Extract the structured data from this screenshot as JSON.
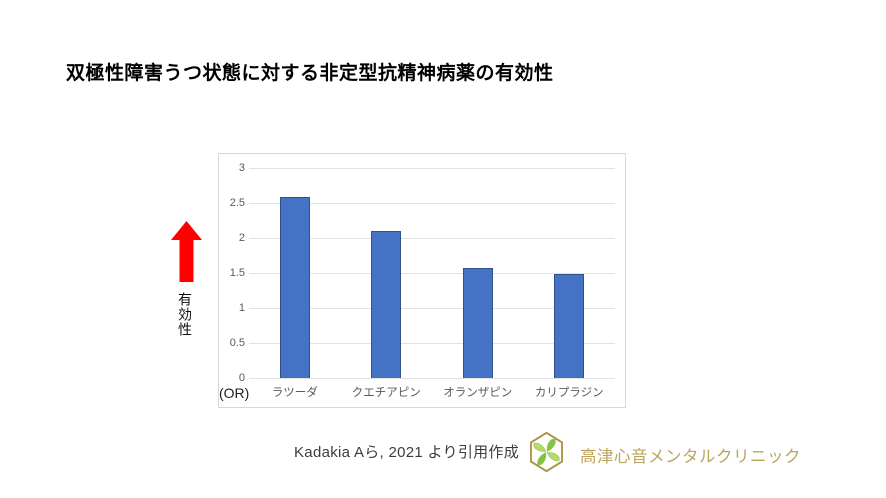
{
  "slide": {
    "title": "双極性障害うつ状態に対する非定型抗精神病薬の有効性",
    "effectiveness_label": "有効性",
    "or_unit_label": "(OR)",
    "citation": "Kadakia Aら, 2021 より引用作成"
  },
  "logo": {
    "clinic_name": "高津心音メンタルクリニック",
    "text_color": "#BCA45C",
    "hex_border_color": "#A9923F",
    "leaf_color_dark": "#86C440",
    "leaf_color_light": "#B5DB6E"
  },
  "colors": {
    "arrow_red": "#FF0000",
    "bar_fill": "#4472C4",
    "bar_border": "#2F528F",
    "gridline": "#E2E2E2",
    "chart_border": "#D8D8D8",
    "axis_text": "#595959"
  },
  "chart_data": {
    "type": "bar",
    "title": "",
    "xlabel": "",
    "ylabel": "(OR)",
    "categories": [
      "ラツーダ",
      "クエチアピン",
      "オランザピン",
      "カリプラジン"
    ],
    "values": [
      2.58,
      2.1,
      1.57,
      1.48
    ],
    "ylim": [
      0,
      3
    ],
    "yticks": [
      0,
      0.5,
      1,
      1.5,
      2,
      2.5,
      3
    ],
    "ytick_labels": [
      "0",
      "0.5",
      "1",
      "1.5",
      "2",
      "2.5",
      "3"
    ],
    "grid": true,
    "legend": false
  }
}
